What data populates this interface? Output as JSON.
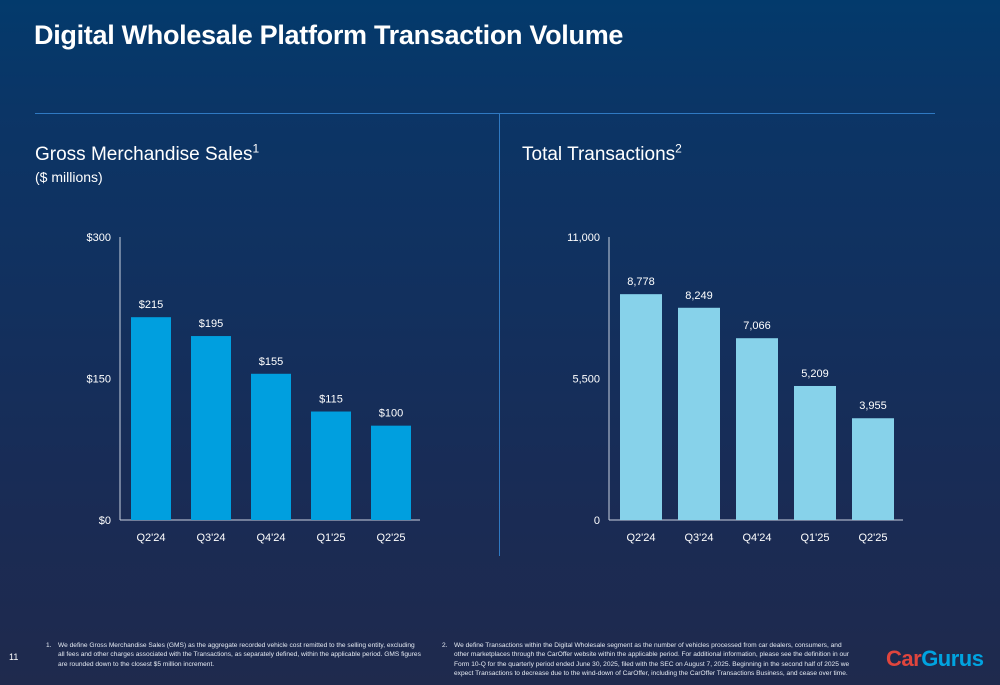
{
  "page": {
    "title": "Digital Wholesale Platform Transaction Volume",
    "page_number": "11",
    "logo_text": {
      "part1": "Car",
      "part2": "Gurus"
    }
  },
  "colors": {
    "gms_bar": "#009fdf",
    "tx_bar": "#87d2ea",
    "accent_line": "#2f79c2"
  },
  "chart_data": [
    {
      "type": "bar",
      "title": "Gross Merchandise Sales",
      "title_superscript": "1",
      "subtitle": "($ millions)",
      "categories": [
        "Q2'24",
        "Q3'24",
        "Q4'24",
        "Q1'25",
        "Q2'25"
      ],
      "values": [
        215,
        195,
        155,
        115,
        100
      ],
      "data_labels": [
        "$215",
        "$195",
        "$155",
        "$115",
        "$100"
      ],
      "yticks": [
        0,
        150,
        300
      ],
      "ytick_labels": [
        "$0",
        "$150",
        "$300"
      ],
      "ylim": [
        0,
        300
      ],
      "grid": false,
      "legend": "none"
    },
    {
      "type": "bar",
      "title": "Total Transactions",
      "title_superscript": "2",
      "subtitle": "",
      "categories": [
        "Q2'24",
        "Q3'24",
        "Q4'24",
        "Q1'25",
        "Q2'25"
      ],
      "values": [
        8778,
        8249,
        7066,
        5209,
        3955
      ],
      "data_labels": [
        "8,778",
        "8,249",
        "7,066",
        "5,209",
        "3,955"
      ],
      "yticks": [
        0,
        5500,
        11000
      ],
      "ytick_labels": [
        "0",
        "5,500",
        "11,000"
      ],
      "ylim": [
        0,
        11000
      ],
      "grid": false,
      "legend": "none"
    }
  ],
  "footnotes": [
    {
      "number": "1.",
      "text": "We define Gross Merchandise Sales (GMS) as the aggregate recorded vehicle cost remitted to the selling entity, excluding all fees and other charges associated with the Transactions, as separately defined, within the applicable period. GMS figures are rounded down to the closest $5 million increment."
    },
    {
      "number": "2.",
      "text": "We define Transactions within the Digital Wholesale segment as the number of vehicles processed from car dealers, consumers, and other marketplaces through the CarOffer website within the applicable period. For additional information, please see the definition in our Form 10-Q for the quarterly period ended June 30, 2025, filed with the SEC on August 7, 2025. Beginning in the second half of 2025 we expect Transactions to decrease due to the wind-down of CarOffer, including the CarOffer Transactions Business, and cease over time."
    }
  ]
}
